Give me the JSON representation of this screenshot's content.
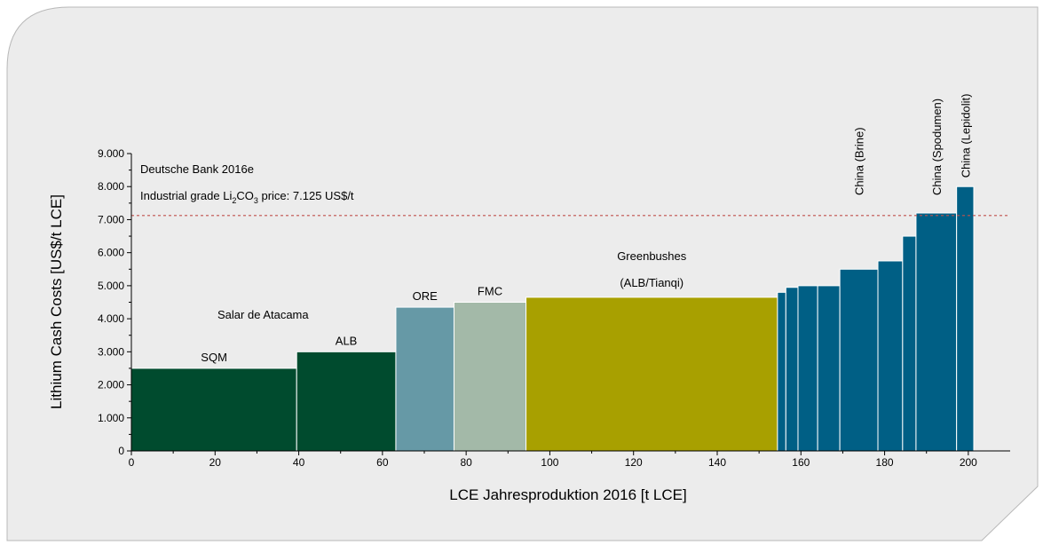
{
  "chart_data": {
    "type": "bar",
    "xlabel": "LCE Jahresproduktion 2016 [t LCE]",
    "ylabel": "Lithium Cash Costs [US$/t LCE]",
    "source_note": "Deutsche Bank 2016e",
    "price_label": [
      "Industrial grade Li",
      "2",
      "CO",
      "3",
      " price: 7.125 US$/t"
    ],
    "price_line": 7125,
    "price_line_color": "#c0504d",
    "group_label": "Salar de Atacama",
    "sub_label": "(ALB/Tianqi)",
    "categories": [
      "SQM",
      "ALB",
      "ORE",
      "FMC",
      "Greenbushes",
      null,
      null,
      null,
      null,
      "China (Brine)",
      null,
      null,
      "China (Spodumen)",
      "China (Lepidolit)"
    ],
    "x_start": [
      0,
      39.5,
      63.2,
      77.1,
      94.3,
      154.4,
      156.4,
      159.3,
      164,
      169.3,
      178.4,
      184.3,
      187.5,
      197.2
    ],
    "x_end": [
      39.5,
      63.2,
      77.1,
      94.3,
      154.4,
      156.4,
      159.3,
      164,
      169.3,
      178.4,
      184.3,
      187.5,
      197.2,
      201.3
    ],
    "values": [
      2500,
      3000,
      4350,
      4500,
      4650,
      4800,
      4950,
      5000,
      5000,
      5500,
      5750,
      6500,
      7200,
      8000
    ],
    "colors": [
      "#004b2e",
      "#004b2e",
      "#6699a6",
      "#a3b9a8",
      "#a8a000",
      "#005f85",
      "#005f85",
      "#005f85",
      "#005f85",
      "#005f85",
      "#005f85",
      "#005f85",
      "#005f85",
      "#005f85"
    ],
    "xlim": [
      0,
      210
    ],
    "xticks": [
      0,
      20,
      40,
      60,
      80,
      100,
      120,
      140,
      160,
      180,
      200
    ],
    "ylim": [
      0,
      9000
    ],
    "yticks": [
      0,
      {
        "value": 1000,
        "label": "1.000"
      },
      {
        "value": 2000,
        "label": "2.000"
      },
      {
        "value": 3000,
        "label": "3.000"
      },
      {
        "value": 4000,
        "label": "4.000"
      },
      {
        "value": 5000,
        "label": "5.000"
      },
      {
        "value": 6000,
        "label": "6.000"
      },
      {
        "value": 7000,
        "label": "7.000"
      },
      {
        "value": 8000,
        "label": "8.000"
      },
      {
        "value": 9000,
        "label": "9.000"
      }
    ]
  }
}
